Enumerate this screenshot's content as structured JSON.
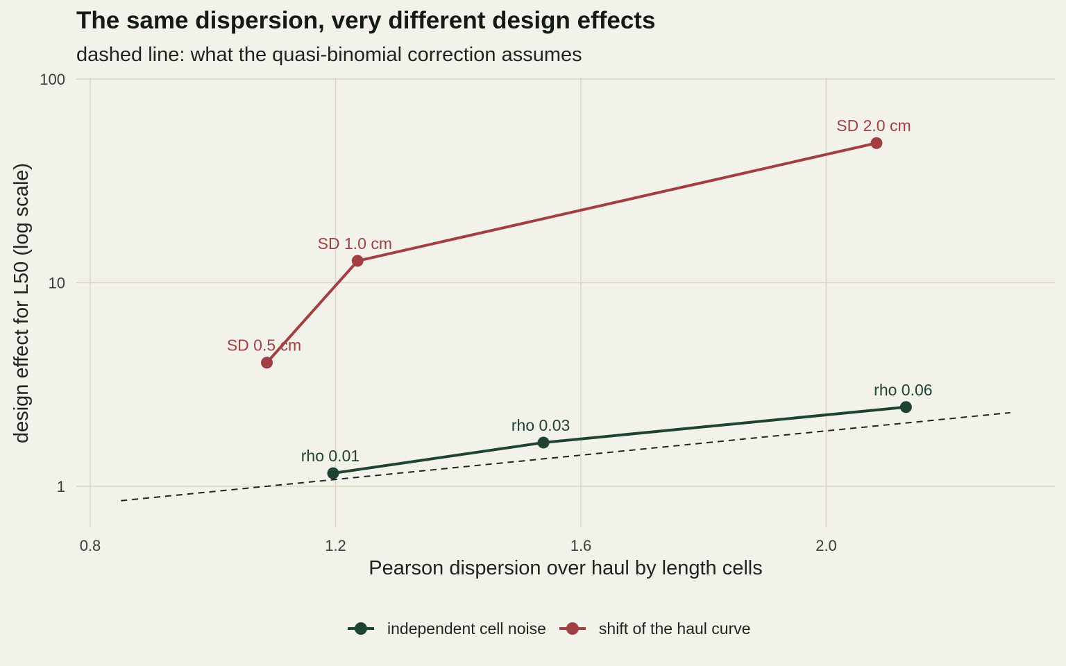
{
  "chart_data": {
    "type": "line",
    "title": "The same dispersion, very different design effects",
    "subtitle": "dashed line: what the quasi-binomial correction assumes",
    "xlabel": "Pearson dispersion over haul by length cells",
    "ylabel": "design effect for L50 (log scale)",
    "x_scale": "linear",
    "y_scale": "log10",
    "xlim": [
      0.76,
      2.38
    ],
    "ylim": [
      0.58,
      100
    ],
    "x_ticks": [
      0.8,
      1.2,
      1.6,
      2.0
    ],
    "x_tick_labels": [
      "0.8",
      "1.2",
      "1.6",
      "2.0"
    ],
    "y_ticks": [
      1,
      10,
      100
    ],
    "y_tick_labels": [
      "1",
      "10",
      "100"
    ],
    "grid": true,
    "legend_position": "bottom",
    "series": [
      {
        "name": "independent cell noise",
        "color": "#1f4332",
        "points": [
          {
            "x": 1.196,
            "y": 1.16,
            "label": "rho 0.01"
          },
          {
            "x": 1.539,
            "y": 1.64,
            "label": "rho 0.03"
          },
          {
            "x": 2.13,
            "y": 2.45,
            "label": "rho 0.06"
          }
        ]
      },
      {
        "name": "shift of the haul curve",
        "color": "#a13f43",
        "points": [
          {
            "x": 1.088,
            "y": 4.05,
            "label": "SD 0.5 cm"
          },
          {
            "x": 1.236,
            "y": 12.8,
            "label": "SD 1.0 cm"
          },
          {
            "x": 2.082,
            "y": 48.5,
            "label": "SD 2.0 cm"
          }
        ]
      }
    ],
    "reference_line": {
      "style": "dashed",
      "color": "#222222",
      "points": [
        {
          "x": 0.85,
          "y": 0.85
        },
        {
          "x": 2.3,
          "y": 2.3
        }
      ]
    }
  }
}
